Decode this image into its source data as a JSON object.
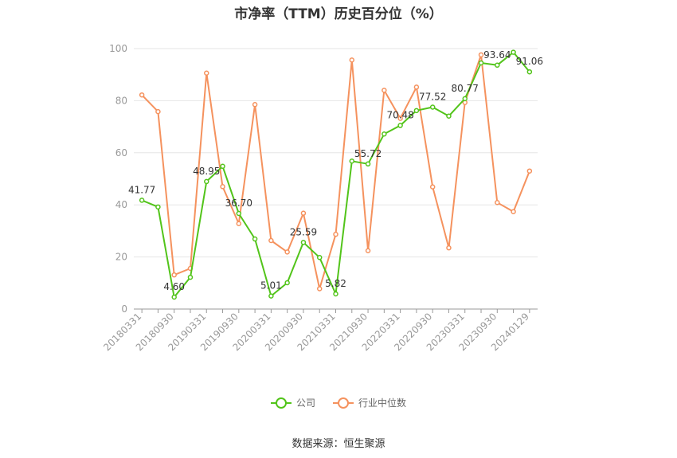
{
  "chart_data": {
    "type": "line",
    "title": "市净率（TTM）历史百分位（%）",
    "ylim": [
      0,
      100
    ],
    "y_ticks": [
      "0",
      "20",
      "40",
      "60",
      "80",
      "100"
    ],
    "categories": [
      "20180331",
      "20180630",
      "20180930",
      "20181231",
      "20190331",
      "20190630",
      "20190930",
      "20191231",
      "20200331",
      "20200630",
      "20200930",
      "20201231",
      "20210331",
      "20210630",
      "20210930",
      "20211231",
      "20220331",
      "20220630",
      "20220930",
      "20221231",
      "20230331",
      "20230630",
      "20230930",
      "20231231",
      "20240129"
    ],
    "x_tick_labels": [
      "20180331",
      "20180930",
      "20190331",
      "20190930",
      "20200331",
      "20200930",
      "20210331",
      "20210930",
      "20220331",
      "20220930",
      "20230331",
      "20230930",
      "20240129"
    ],
    "series": [
      {
        "name": "公司",
        "color": "#52c41a",
        "values": [
          41.77,
          39.2,
          4.6,
          12.2,
          48.95,
          54.8,
          36.7,
          26.9,
          5.01,
          10.1,
          25.59,
          19.8,
          5.82,
          56.8,
          55.72,
          67.2,
          70.48,
          76.2,
          77.52,
          74.1,
          80.77,
          94.5,
          93.64,
          98.6,
          91.06
        ],
        "labels": [
          "41.77",
          "",
          "4.60",
          "",
          "48.95",
          "",
          "36.70",
          "",
          "5.01",
          "",
          "25.59",
          "",
          "5.82",
          "",
          "55.72",
          "",
          "70.48",
          "",
          "77.52",
          "",
          "80.77",
          "",
          "93.64",
          "",
          "91.06"
        ]
      },
      {
        "name": "行业中位数",
        "color": "#f5925e",
        "values": [
          82.2,
          75.8,
          13.1,
          15.6,
          90.6,
          47.0,
          32.8,
          78.5,
          26.3,
          21.9,
          36.8,
          7.8,
          28.7,
          95.6,
          22.4,
          84.0,
          73.2,
          85.2,
          46.9,
          23.5,
          79.3,
          97.6,
          40.9,
          37.4,
          53.0
        ]
      }
    ],
    "legend_position": "bottom-center",
    "grid": true
  },
  "legend": {
    "company": "公司",
    "industry": "行业中位数"
  },
  "source": "数据来源：恒生聚源"
}
